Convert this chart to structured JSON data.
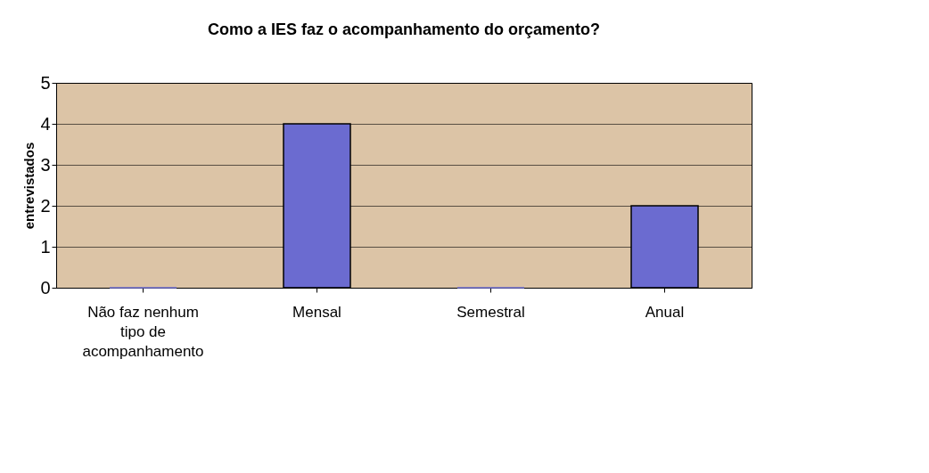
{
  "chart_data": {
    "type": "bar",
    "title": "Como a IES faz o acompanhamento do orçamento?",
    "ylabel": "entrevistados",
    "categories": [
      "Não faz nenhum tipo de acompanhamento",
      "Mensal",
      "Semestral",
      "Anual"
    ],
    "values": [
      0,
      4,
      0,
      2
    ],
    "color": "#6b6bd0",
    "ylim": [
      0,
      5
    ],
    "yticks": [
      0,
      1,
      2,
      3,
      4,
      5
    ],
    "grid": "y"
  }
}
